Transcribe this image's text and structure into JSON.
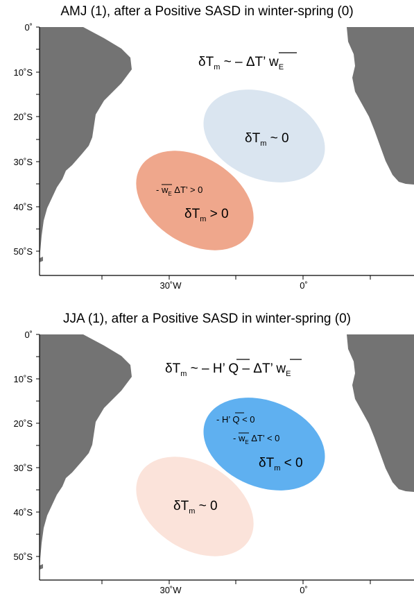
{
  "panels": [
    {
      "title": "AMJ (1), after a Positive SASD in winter-spring (0)",
      "lat_ticks": [
        "0˚",
        "10˚S",
        "20˚S",
        "30˚S",
        "40˚S",
        "50˚S"
      ],
      "lon_ticks": [
        "30˚W",
        "0˚"
      ],
      "ellipses": [
        {
          "name": "cool-region",
          "color": "#dae5f0"
        },
        {
          "name": "warm-region",
          "color": "#efa78c"
        }
      ],
      "equation": {
        "lead": "δT",
        "sub": "m",
        "rest": " ~  – ΔT’ ",
        "wbar": "w",
        "wsub": "E"
      },
      "labels": {
        "cool_text": "δT",
        "cool_sub": "m",
        "cool_rest": " ~ 0",
        "term1_pre": "- ",
        "term1_w": "w",
        "term1_sub": "E",
        "term1_rest": " ΔT’  >  0",
        "warm_text": "δT",
        "warm_sub": "m",
        "warm_rest": " > 0"
      }
    },
    {
      "title": "JJA (1), after a Positive SASD in winter-spring (0)",
      "lat_ticks": [
        "0˚",
        "10˚S",
        "20˚S",
        "30˚S",
        "40˚S",
        "50˚S"
      ],
      "lon_ticks": [
        "30˚W",
        "0˚"
      ],
      "ellipses": [
        {
          "name": "cool-region",
          "color": "#5fb0f0"
        },
        {
          "name": "warm-region",
          "color": "#fbe3da"
        }
      ],
      "equation": {
        "lead": "δT",
        "sub": "m",
        "mid": " ~  – H’ ",
        "qbar": "Q",
        "rest": " – ΔT’ ",
        "wbar": "w",
        "wsub": "E"
      },
      "labels": {
        "termH_pre": "- H’ ",
        "termH_q": "Q",
        "termH_rest": "  < 0",
        "termW_pre": "- ",
        "termW_w": "w",
        "termW_sub": "E",
        "termW_rest": " ΔT’  < 0",
        "cool_text": "δT",
        "cool_sub": "m",
        "cool_rest": " < 0",
        "warm_text": "δT",
        "warm_sub": "m",
        "warm_rest": " ~ 0"
      }
    }
  ],
  "colors": {
    "land": "#737373",
    "ocean": "#ffffff",
    "axis": "#000000"
  }
}
